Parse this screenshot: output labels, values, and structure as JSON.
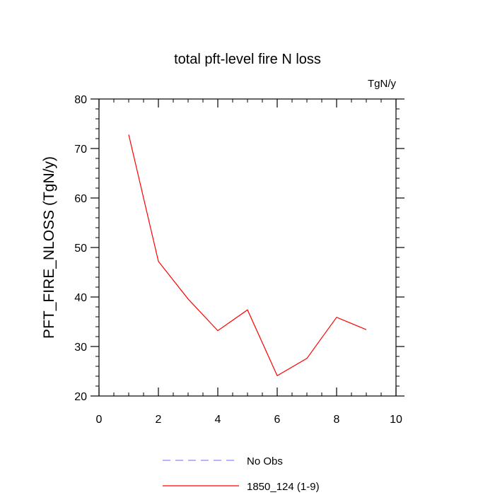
{
  "chart_data": {
    "type": "line",
    "title": "total pft-level fire N loss",
    "units_label": "TgN/y",
    "ylabel": "PFT_FIRE_NLOSS  (TgN/y)",
    "xlabel": "",
    "xlim": [
      0,
      10
    ],
    "ylim": [
      20,
      80
    ],
    "xticks": [
      0,
      2,
      4,
      6,
      8,
      10
    ],
    "yticks": [
      20,
      30,
      40,
      50,
      60,
      70,
      80
    ],
    "grid": false,
    "legend_position": "bottom-center",
    "series": [
      {
        "name": "1850_124 (1-9)",
        "color": "#ff0000",
        "style": "solid",
        "x": [
          1,
          2,
          3,
          4,
          5,
          6,
          7,
          8,
          9
        ],
        "y": [
          72.8,
          47.2,
          39.6,
          33.2,
          37.4,
          24.1,
          27.6,
          35.9,
          33.4
        ]
      }
    ],
    "legend": [
      {
        "label": "No Obs",
        "color": "#8888ff",
        "style": "dashed"
      },
      {
        "label": "1850_124 (1-9)",
        "color": "#ff0000",
        "style": "solid"
      }
    ]
  }
}
